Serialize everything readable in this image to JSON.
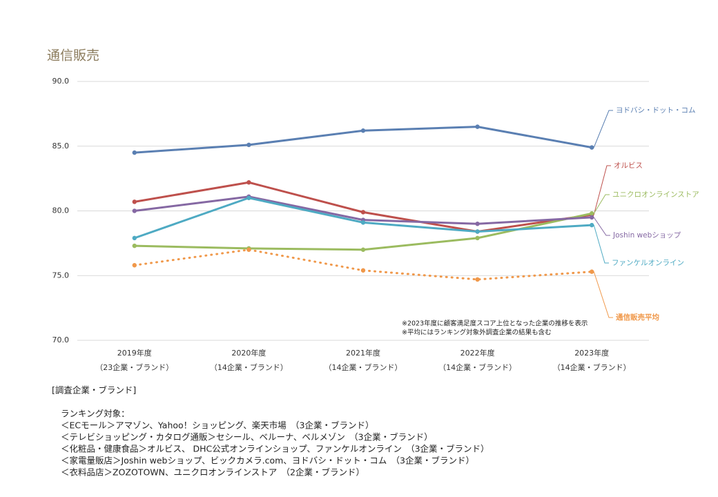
{
  "chart_data": {
    "type": "line",
    "title": "通信販売",
    "categories": [
      "2019年度",
      "2020年度",
      "2021年度",
      "2022年度",
      "2023年度"
    ],
    "category_sublabels": [
      "（23企業・ブランド）",
      "（14企業・ブランド）",
      "（14企業・ブランド）",
      "（14企業・ブランド）",
      "（14企業・ブランド）"
    ],
    "series": [
      {
        "name": "ヨドバシ・ドット・コム",
        "color": "#5a7fb2",
        "values": [
          84.5,
          85.1,
          86.2,
          86.5,
          84.9
        ]
      },
      {
        "name": "オルビス",
        "color": "#be504c",
        "values": [
          80.7,
          82.2,
          79.9,
          78.4,
          79.7
        ]
      },
      {
        "name": "ユニクロオンラインストア",
        "color": "#9bbb5f",
        "values": [
          77.3,
          77.1,
          77.0,
          77.9,
          79.8
        ]
      },
      {
        "name": "Joshin webショップ",
        "color": "#8568a3",
        "values": [
          80.0,
          81.1,
          79.3,
          79.0,
          79.5
        ]
      },
      {
        "name": "ファンケルオンライン",
        "color": "#4eaac3",
        "values": [
          77.9,
          81.0,
          79.1,
          78.4,
          78.9
        ]
      },
      {
        "name": "通信販売平均",
        "color": "#f0984a",
        "values": [
          75.8,
          77.0,
          75.4,
          74.7,
          75.3
        ],
        "dashed": true
      }
    ],
    "ylim": [
      70,
      90
    ],
    "yticks": [
      {
        "value": 70,
        "label": "70.0"
      },
      {
        "value": 75,
        "label": "75.0"
      },
      {
        "value": 80,
        "label": "80.0"
      },
      {
        "value": 85,
        "label": "85.0"
      },
      {
        "value": 90,
        "label": "90.0"
      }
    ],
    "grid": true,
    "notes": [
      "※2023年度に顧客満足度スコア上位となった企業の推移を表示",
      "※平均にはランキング対象外調査企業の結果も含む"
    ]
  },
  "footer": {
    "heading": "[調査企業・ブランド]",
    "subheading": "ランキング対象：",
    "lines": [
      "＜ECモール＞アマゾン、Yahoo！ショッピング、楽天市場　（3企業・ブランド）",
      "＜テレビショッピング・カタログ通販＞セシール、ベルーナ、ベルメゾン　（3企業・ブランド）",
      "＜化粧品・健康食品＞オルビス、 DHC公式オンラインショップ、ファンケルオンライン　（3企業・ブランド）",
      "＜家電量販店＞Joshin webショップ、ビックカメラ.com、ヨドバシ・ドット・コム　（3企業・ブランド）",
      "＜衣料品店＞ZOZOTOWN、ユニクロオンラインストア　（2企業・ブランド）"
    ]
  }
}
